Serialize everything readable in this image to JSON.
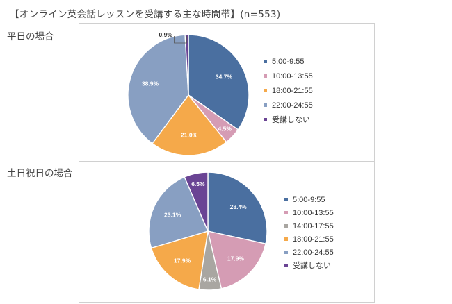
{
  "page": {
    "title": "【オンライン英会話レッスンを受講する主な時間帯】(n=553)",
    "weekday_label": "平日の場合",
    "weekend_label": "土日祝日の場合"
  },
  "chart_data": [
    {
      "type": "pie",
      "title": "平日の場合",
      "legend_position": "right",
      "slices": [
        {
          "label": "5:00-9:55",
          "value": 34.7,
          "display": "34.7%",
          "color": "#4a6fa0"
        },
        {
          "label": "10:00-13:55",
          "value": 4.5,
          "display": "4.5%",
          "color": "#d59cb4"
        },
        {
          "label": "18:00-21:55",
          "value": 21.0,
          "display": "21.0%",
          "color": "#f5a94a"
        },
        {
          "label": "22:00-24:55",
          "value": 38.9,
          "display": "38.9%",
          "color": "#889fc2"
        },
        {
          "label": "受講しない",
          "value": 0.9,
          "display": "0.9%",
          "color": "#6a4494"
        }
      ]
    },
    {
      "type": "pie",
      "title": "土日祝日の場合",
      "legend_position": "right",
      "slices": [
        {
          "label": "5:00-9:55",
          "value": 28.4,
          "display": "28.4%",
          "color": "#4a6fa0"
        },
        {
          "label": "10:00-13:55",
          "value": 17.9,
          "display": "17.9%",
          "color": "#d59cb4"
        },
        {
          "label": "14:00-17:55",
          "value": 6.1,
          "display": "6.1%",
          "color": "#a9a6a1"
        },
        {
          "label": "18:00-21:55",
          "value": 17.9,
          "display": "17.9%",
          "color": "#f5a94a"
        },
        {
          "label": "22:00-24:55",
          "value": 23.1,
          "display": "23.1%",
          "color": "#889fc2"
        },
        {
          "label": "受講しない",
          "value": 6.5,
          "display": "6.5%",
          "color": "#6a4494"
        }
      ]
    }
  ]
}
